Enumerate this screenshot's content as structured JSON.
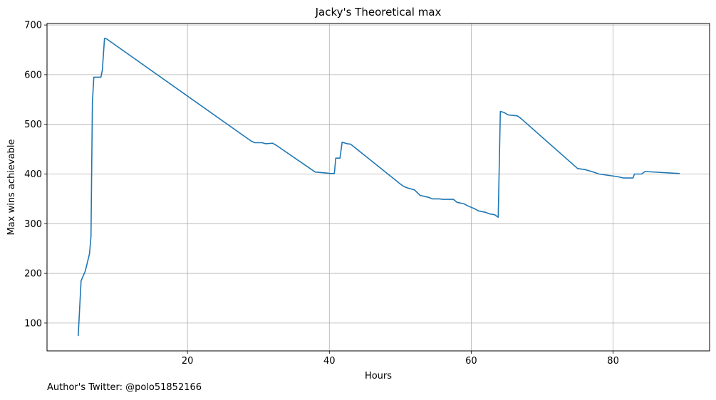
{
  "chart_data": {
    "type": "line",
    "title": "Jacky's Theoretical max",
    "xlabel": "Hours",
    "ylabel": "Max wins achievable",
    "xlim": [
      0.2,
      93.6
    ],
    "ylim": [
      44,
      703
    ],
    "xticks": [
      20,
      40,
      60,
      80
    ],
    "yticks": [
      100,
      200,
      300,
      400,
      500,
      600,
      700
    ],
    "grid": true,
    "line_color": "#1f77b4",
    "series": [
      {
        "points": [
          [
            4.6,
            75
          ],
          [
            5.0,
            185
          ],
          [
            5.6,
            205
          ],
          [
            6.2,
            240
          ],
          [
            6.4,
            275
          ],
          [
            6.6,
            545
          ],
          [
            6.8,
            595
          ],
          [
            7.8,
            595
          ],
          [
            8.0,
            610
          ],
          [
            8.3,
            673
          ],
          [
            8.6,
            672
          ],
          [
            29.0,
            466
          ],
          [
            29.5,
            463
          ],
          [
            30.5,
            463
          ],
          [
            31.0,
            461
          ],
          [
            32.0,
            462
          ],
          [
            32.5,
            458
          ],
          [
            38.0,
            404
          ],
          [
            39.5,
            402
          ],
          [
            40.2,
            401
          ],
          [
            40.7,
            401
          ],
          [
            40.9,
            432
          ],
          [
            41.5,
            432
          ],
          [
            41.8,
            464
          ],
          [
            42.5,
            461
          ],
          [
            43.0,
            460
          ],
          [
            50.0,
            380
          ],
          [
            50.5,
            375
          ],
          [
            51.0,
            372
          ],
          [
            52.0,
            368
          ],
          [
            52.8,
            357
          ],
          [
            54.0,
            353
          ],
          [
            54.5,
            350
          ],
          [
            55.5,
            350
          ],
          [
            56.0,
            349
          ],
          [
            57.5,
            349
          ],
          [
            58.0,
            343
          ],
          [
            59.0,
            340
          ],
          [
            59.5,
            336
          ],
          [
            60.5,
            330
          ],
          [
            61.0,
            326
          ],
          [
            62.0,
            323
          ],
          [
            62.5,
            320
          ],
          [
            63.3,
            318
          ],
          [
            63.8,
            313
          ],
          [
            64.1,
            526
          ],
          [
            64.6,
            524
          ],
          [
            65.2,
            519
          ],
          [
            66.5,
            517
          ],
          [
            67.0,
            512
          ],
          [
            75.0,
            411
          ],
          [
            76.0,
            409
          ],
          [
            77.0,
            405
          ],
          [
            78.0,
            400
          ],
          [
            80.5,
            395
          ],
          [
            81.5,
            392
          ],
          [
            82.8,
            392
          ],
          [
            83.0,
            400
          ],
          [
            84.0,
            400
          ],
          [
            84.5,
            405
          ],
          [
            89.3,
            401
          ]
        ]
      }
    ]
  },
  "footer": {
    "author": "Author's Twitter: @polo51852166"
  }
}
